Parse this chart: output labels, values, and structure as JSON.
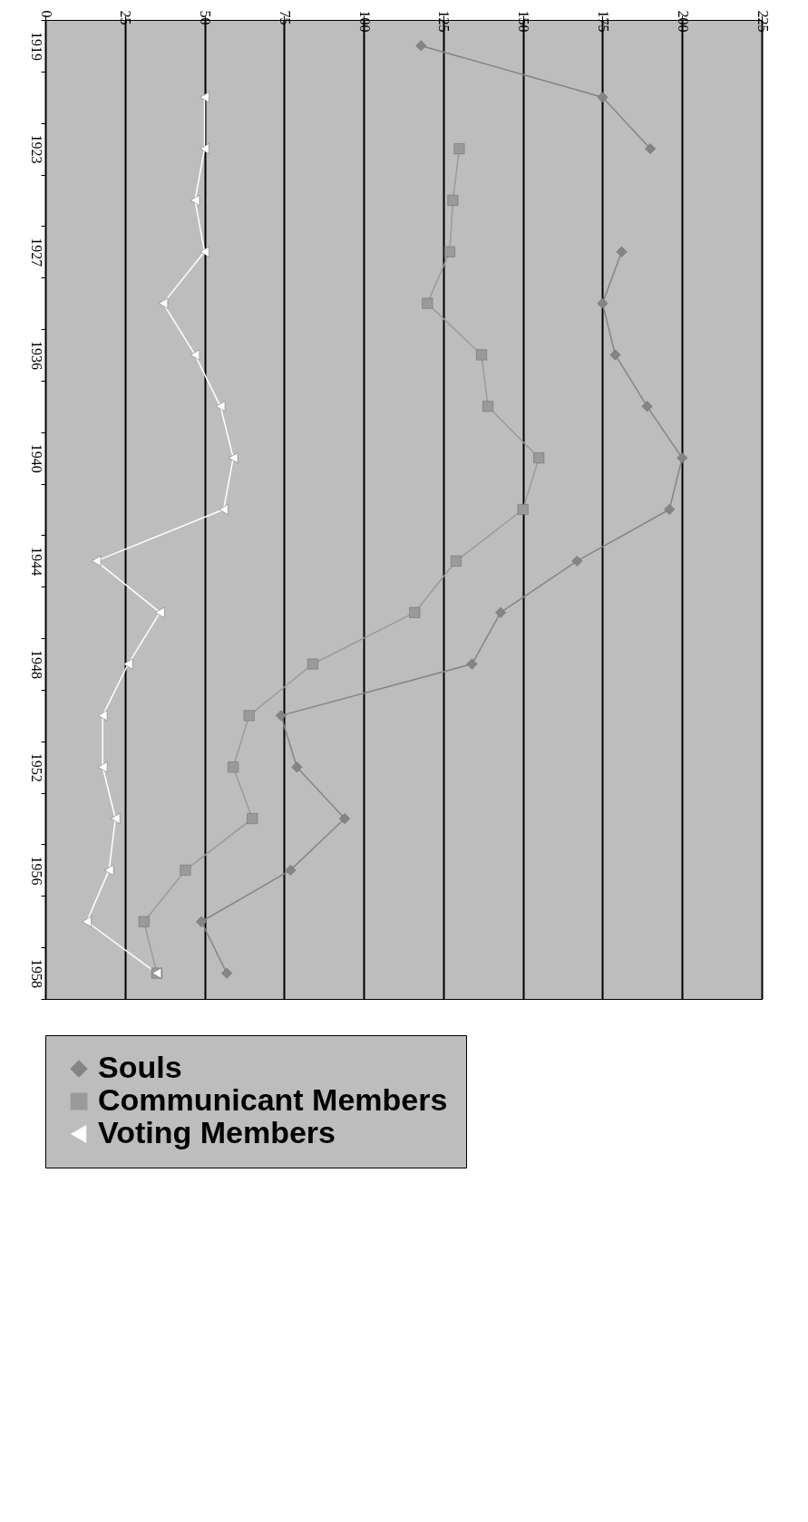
{
  "chart_data": {
    "type": "line",
    "orientation": "horizontal",
    "categories": [
      "1919",
      null,
      "1923",
      null,
      "1927",
      null,
      "1936",
      null,
      "1940",
      null,
      "1944",
      null,
      "1948",
      null,
      "1952",
      null,
      "1956",
      null,
      "1958"
    ],
    "series": [
      {
        "name": "Souls",
        "color": "#858585",
        "marker": "diamond",
        "values": [
          118,
          175,
          190,
          null,
          181,
          175,
          179,
          189,
          200,
          196,
          167,
          143,
          134,
          74,
          79,
          94,
          77,
          49,
          57
        ]
      },
      {
        "name": "Communicant Members",
        "color": "#9a9a9a",
        "marker": "square",
        "values": [
          null,
          null,
          130,
          128,
          127,
          120,
          137,
          139,
          155,
          150,
          129,
          116,
          84,
          64,
          59,
          65,
          44,
          31,
          35
        ]
      },
      {
        "name": "Voting Members",
        "color": "#ffffff",
        "marker": "triangle",
        "values": [
          null,
          50,
          50,
          47,
          50,
          37,
          47,
          55,
          59,
          56,
          16,
          36,
          26,
          18,
          18,
          22,
          20,
          13,
          35
        ]
      }
    ],
    "xlim": [
      0,
      225
    ],
    "xticks": [
      0,
      25,
      50,
      75,
      100,
      125,
      150,
      175,
      200,
      225
    ],
    "grid": "x",
    "legend": "bottom",
    "line_style": "solid"
  }
}
